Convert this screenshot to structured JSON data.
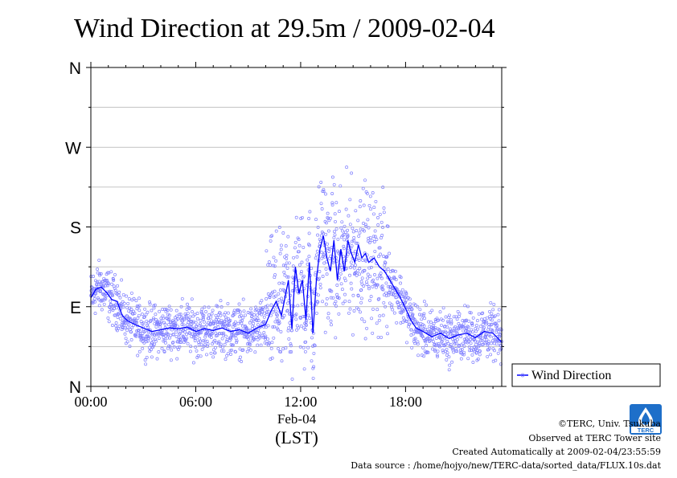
{
  "chart_data": {
    "type": "scatter",
    "title": "Wind Direction at 29.5m / 2009-02-04",
    "x_ticks": [
      "00:00",
      "06:00",
      "12:00",
      "18:00"
    ],
    "x_tick_values_hours": [
      0,
      6,
      12,
      18
    ],
    "x_date_label": "Feb-04",
    "xlabel": "(LST)",
    "y_ticks": [
      "N",
      "E",
      "S",
      "W",
      "N"
    ],
    "y_tick_values_deg": [
      0,
      90,
      180,
      270,
      360
    ],
    "xlim_hours": [
      0,
      23.5
    ],
    "ylim_deg": [
      0,
      360
    ],
    "grid": true,
    "legend": {
      "position": "right",
      "entries": [
        "Wind Direction"
      ]
    },
    "series": [
      {
        "name": "Wind Direction",
        "color": "#0000ff",
        "point_color": "#8080ff",
        "line": [
          [
            0.0,
            100
          ],
          [
            0.3,
            110
          ],
          [
            0.6,
            112
          ],
          [
            0.9,
            106
          ],
          [
            1.2,
            98
          ],
          [
            1.5,
            96
          ],
          [
            1.8,
            80
          ],
          [
            2.1,
            74
          ],
          [
            2.5,
            70
          ],
          [
            3.0,
            66
          ],
          [
            3.5,
            62
          ],
          [
            4.0,
            64
          ],
          [
            4.5,
            66
          ],
          [
            5.0,
            65
          ],
          [
            5.5,
            67
          ],
          [
            6.0,
            62
          ],
          [
            6.5,
            65
          ],
          [
            7.0,
            63
          ],
          [
            7.5,
            66
          ],
          [
            8.0,
            62
          ],
          [
            8.5,
            64
          ],
          [
            9.0,
            60
          ],
          [
            9.5,
            66
          ],
          [
            10.0,
            70
          ],
          [
            10.3,
            85
          ],
          [
            10.6,
            96
          ],
          [
            10.9,
            80
          ],
          [
            11.1,
            100
          ],
          [
            11.3,
            120
          ],
          [
            11.5,
            65
          ],
          [
            11.7,
            135
          ],
          [
            11.9,
            105
          ],
          [
            12.1,
            120
          ],
          [
            12.3,
            75
          ],
          [
            12.5,
            140
          ],
          [
            12.7,
            60
          ],
          [
            12.9,
            120
          ],
          [
            13.1,
            155
          ],
          [
            13.3,
            170
          ],
          [
            13.5,
            145
          ],
          [
            13.7,
            130
          ],
          [
            13.9,
            165
          ],
          [
            14.1,
            120
          ],
          [
            14.3,
            155
          ],
          [
            14.5,
            130
          ],
          [
            14.7,
            165
          ],
          [
            14.9,
            150
          ],
          [
            15.1,
            140
          ],
          [
            15.3,
            160
          ],
          [
            15.5,
            145
          ],
          [
            15.7,
            150
          ],
          [
            15.9,
            140
          ],
          [
            16.2,
            145
          ],
          [
            16.5,
            135
          ],
          [
            16.8,
            130
          ],
          [
            17.1,
            120
          ],
          [
            17.4,
            110
          ],
          [
            17.7,
            100
          ],
          [
            18.0,
            88
          ],
          [
            18.3,
            75
          ],
          [
            18.6,
            66
          ],
          [
            19.0,
            62
          ],
          [
            19.5,
            56
          ],
          [
            20.0,
            60
          ],
          [
            20.5,
            54
          ],
          [
            21.0,
            58
          ],
          [
            21.5,
            60
          ],
          [
            22.0,
            55
          ],
          [
            22.5,
            62
          ],
          [
            23.0,
            60
          ],
          [
            23.5,
            50
          ]
        ]
      }
    ]
  },
  "footer": {
    "copyright": "©TERC, Univ. Tsukuba",
    "observed": "Observed at TERC Tower site",
    "created": "Created Automatically at 2009-02-04/23:55:59",
    "source": "Data source : /home/hojyo/new/TERC-data/sorted_data/FLUX.10s.dat",
    "logo_text": "TERC"
  }
}
